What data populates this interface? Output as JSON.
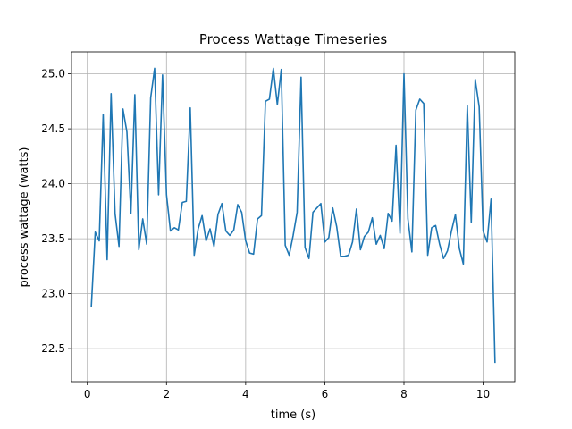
{
  "chart_data": {
    "type": "line",
    "title": "Process Wattage Timeseries",
    "xlabel": "time (s)",
    "ylabel": "process wattage (watts)",
    "xlim": [
      -0.4,
      10.8
    ],
    "ylim": [
      22.2,
      25.2
    ],
    "xticks": [
      0,
      2,
      4,
      6,
      8,
      10
    ],
    "yticks": [
      22.5,
      23.0,
      23.5,
      24.0,
      24.5,
      25.0
    ],
    "xtick_labels": [
      "0",
      "2",
      "4",
      "6",
      "8",
      "10"
    ],
    "ytick_labels": [
      "22.5",
      "23.0",
      "23.5",
      "24.0",
      "24.5",
      "25.0"
    ],
    "grid": true,
    "line_color": "#1f77b4",
    "series": [
      {
        "x": [
          0.1,
          0.2,
          0.3,
          0.4,
          0.5,
          0.6,
          0.7,
          0.8,
          0.9,
          1.0,
          1.1,
          1.2,
          1.3,
          1.4,
          1.5,
          1.6,
          1.7,
          1.8,
          1.9,
          2.0,
          2.1,
          2.2,
          2.3,
          2.4,
          2.5,
          2.6,
          2.7,
          2.8,
          2.9,
          3.0,
          3.1,
          3.2,
          3.3,
          3.4,
          3.5,
          3.6,
          3.7,
          3.8,
          3.9,
          4.0,
          4.1,
          4.2,
          4.3,
          4.4,
          4.5,
          4.6,
          4.7,
          4.8,
          4.9,
          5.0,
          5.1,
          5.2,
          5.3,
          5.4,
          5.5,
          5.6,
          5.7,
          5.8,
          5.9,
          6.0,
          6.1,
          6.2,
          6.3,
          6.4,
          6.5,
          6.6,
          6.7,
          6.8,
          6.9,
          7.0,
          7.1,
          7.2,
          7.3,
          7.4,
          7.5,
          7.6,
          7.7,
          7.8,
          7.9,
          8.0,
          8.1,
          8.2,
          8.3,
          8.4,
          8.5,
          8.6,
          8.7,
          8.8,
          8.9,
          9.0,
          9.1,
          9.2,
          9.3,
          9.4,
          9.5,
          9.6,
          9.7,
          9.8,
          9.9,
          10.0,
          10.1,
          10.2,
          10.3
        ],
        "values": [
          22.88,
          23.56,
          23.48,
          24.63,
          23.31,
          24.82,
          23.73,
          23.43,
          24.68,
          24.47,
          23.73,
          24.81,
          23.4,
          23.68,
          23.45,
          24.78,
          25.05,
          23.9,
          24.99,
          23.9,
          23.57,
          23.6,
          23.58,
          23.83,
          23.84,
          24.69,
          23.35,
          23.59,
          23.71,
          23.48,
          23.59,
          23.43,
          23.72,
          23.82,
          23.57,
          23.53,
          23.58,
          23.81,
          23.74,
          23.48,
          23.37,
          23.36,
          23.68,
          23.71,
          24.75,
          24.77,
          25.05,
          24.72,
          25.04,
          23.44,
          23.35,
          23.53,
          23.74,
          24.97,
          23.42,
          23.32,
          23.74,
          23.78,
          23.82,
          23.47,
          23.51,
          23.78,
          23.61,
          23.34,
          23.34,
          23.35,
          23.47,
          23.77,
          23.4,
          23.52,
          23.56,
          23.69,
          23.45,
          23.53,
          23.41,
          23.73,
          23.66,
          24.35,
          23.55,
          25.0,
          23.68,
          23.38,
          24.67,
          24.77,
          24.73,
          23.35,
          23.6,
          23.62,
          23.45,
          23.32,
          23.39,
          23.57,
          23.72,
          23.41,
          23.27,
          24.71,
          23.65,
          24.95,
          24.7,
          23.57,
          23.47,
          23.86,
          22.37
        ]
      }
    ]
  }
}
